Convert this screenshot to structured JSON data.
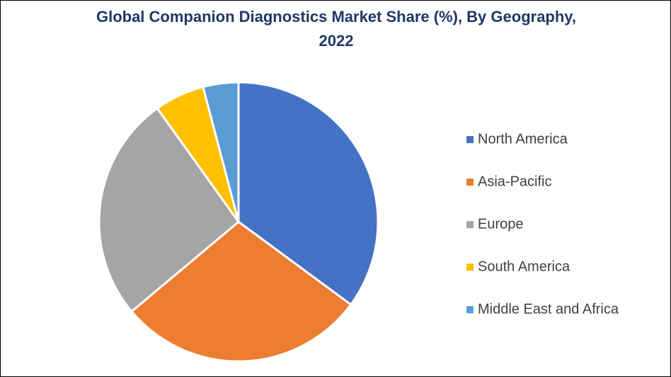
{
  "chart_data": {
    "type": "pie",
    "title": "Global Companion Diagnostics Market Share (%), By Geography, 2022",
    "categories": [
      "North America",
      "Asia-Pacific",
      "Europe",
      "South America",
      "Middle East and Africa"
    ],
    "values": [
      35.1,
      28.8,
      26.2,
      5.8,
      4.1
    ],
    "colors": [
      "#4472c4",
      "#ed7d31",
      "#a5a5a5",
      "#ffc000",
      "#5b9bd5"
    ],
    "legend": "right"
  }
}
